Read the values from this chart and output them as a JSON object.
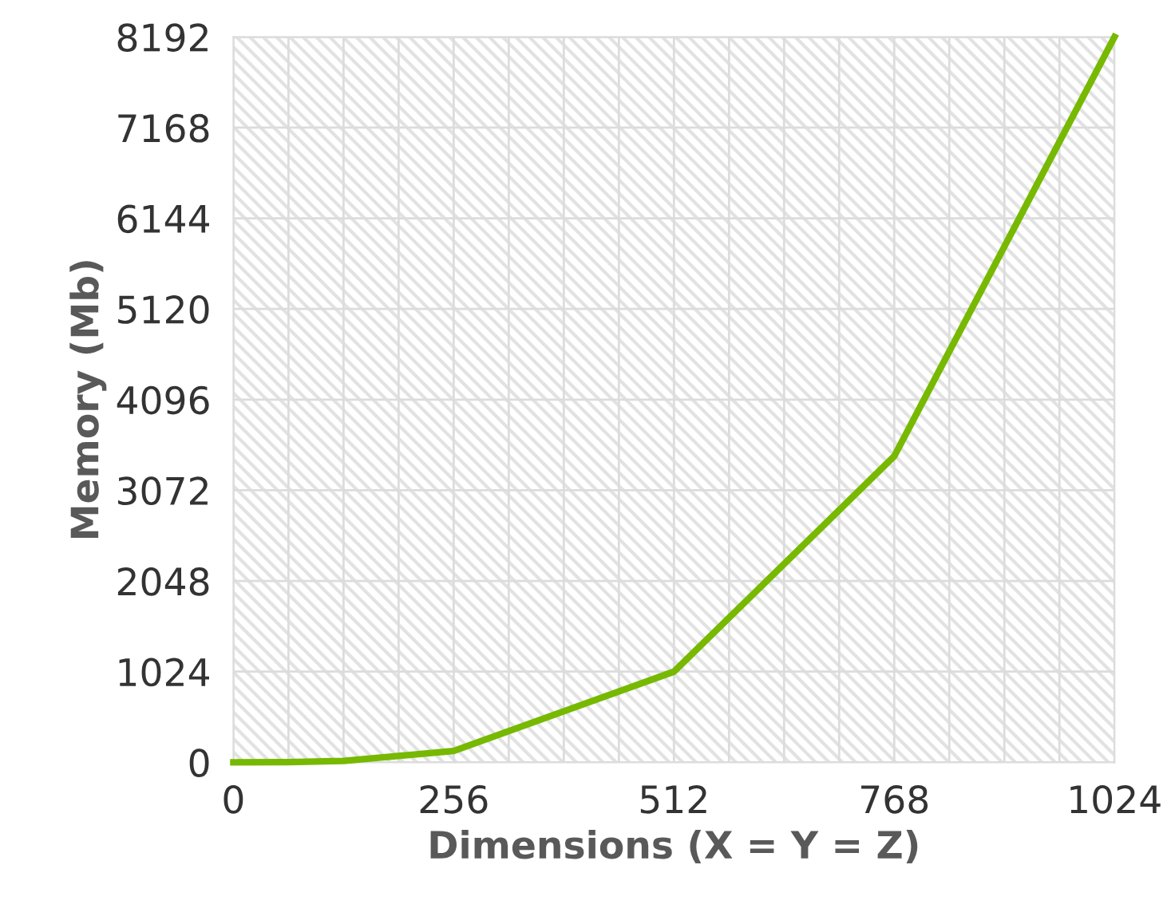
{
  "chart_data": {
    "type": "line",
    "xlabel": "Dimensions (X = Y = Z)",
    "ylabel": "Memory (Mb)",
    "x": [
      0,
      64,
      128,
      256,
      512,
      768,
      1024
    ],
    "series": [
      {
        "color": "#76b900",
        "values": [
          0,
          2,
          16,
          128,
          1024,
          3456,
          8192
        ]
      }
    ],
    "xlim": [
      0,
      1024
    ],
    "xticks": [
      0,
      {
        "value": 64,
        "label": null
      },
      {
        "value": 128,
        "label": null
      },
      {
        "value": 192,
        "label": null
      },
      256,
      {
        "value": 320,
        "label": null
      },
      {
        "value": 384,
        "label": null
      },
      {
        "value": 448,
        "label": null
      },
      512,
      {
        "value": 576,
        "label": null
      },
      {
        "value": 640,
        "label": null
      },
      {
        "value": 704,
        "label": null
      },
      768,
      {
        "value": 832,
        "label": null
      },
      {
        "value": 896,
        "label": null
      },
      {
        "value": 960,
        "label": null
      },
      1024
    ],
    "ylim": [
      0,
      8192
    ],
    "yticks": [
      0,
      1024,
      2048,
      3072,
      4096,
      5120,
      6144,
      7168,
      8192
    ],
    "grid": true,
    "marker": "none",
    "line_style": "solid"
  }
}
